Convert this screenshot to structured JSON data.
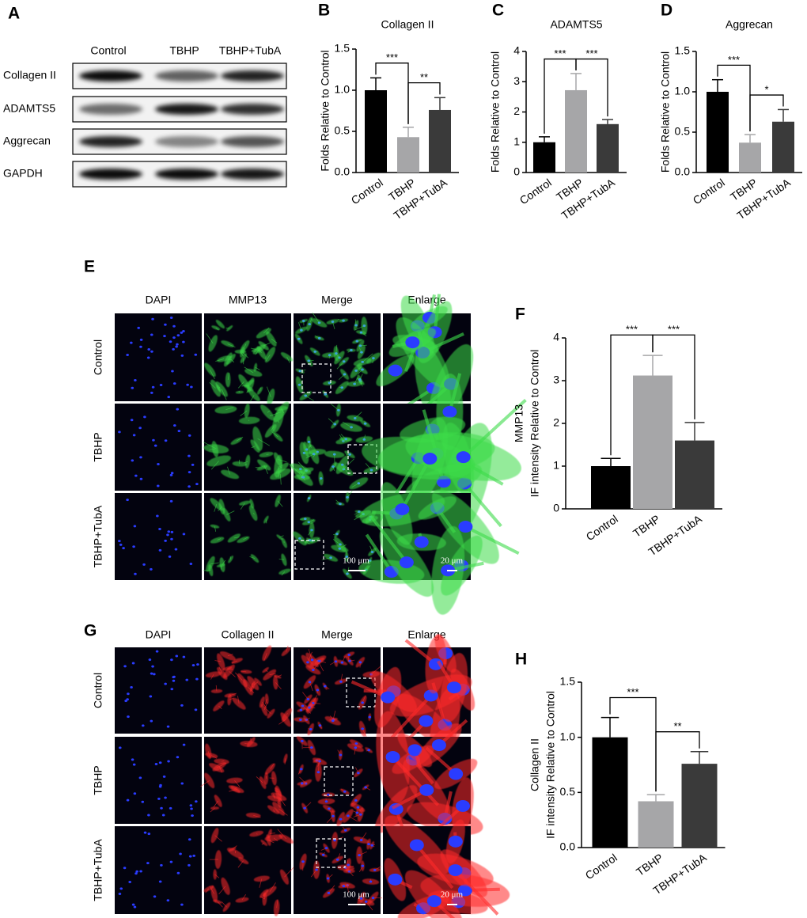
{
  "panel_labels": [
    "A",
    "B",
    "C",
    "D",
    "E",
    "F",
    "G",
    "H"
  ],
  "blot": {
    "columns": [
      "Control",
      "TBHP",
      "TBHP+TubA"
    ],
    "rows": [
      "Collagen II",
      "ADAMTS5",
      "Aggrecan",
      "GAPDH"
    ]
  },
  "if_panels": [
    {
      "channels": [
        "DAPI",
        "MMP13",
        "Merge",
        "Enlarge"
      ],
      "channel_colors": [
        "#2e6fc0",
        "#1aa34a",
        "#000000",
        "#000000"
      ],
      "marker_color": "#3ddc4a",
      "rows": [
        "Control",
        "TBHP",
        "TBHP+TubA"
      ],
      "scale_bars": [
        "100 μm",
        "20 μm"
      ]
    },
    {
      "channels": [
        "DAPI",
        "Collagen II",
        "Merge",
        "Enlarge"
      ],
      "channel_colors": [
        "#2e6fc0",
        "#e02020",
        "#000000",
        "#000000"
      ],
      "marker_color": "#ff2a2a",
      "rows": [
        "Control",
        "TBHP",
        "TBHP+TubA"
      ],
      "scale_bars": [
        "100 μm",
        "20 μm"
      ]
    }
  ],
  "chart_data": [
    {
      "type": "bar",
      "title": "Collagen II",
      "y_label": [
        "Folds Relative to Control"
      ],
      "categories": [
        "Control",
        "TBHP",
        "TBHP+TubA"
      ],
      "values": [
        1.0,
        0.43,
        0.76
      ],
      "errors": [
        0.15,
        0.12,
        0.15
      ],
      "colors": [
        "#000000",
        "#a6a6a8",
        "#3a3a3a"
      ],
      "ylim": [
        0,
        1.5
      ],
      "yticks": [
        {
          "value": 0,
          "label": "0.0"
        },
        {
          "value": 0.5,
          "label": "0.5"
        },
        {
          "value": 1,
          "label": "1.0"
        },
        {
          "value": 1.5,
          "label": "1.5"
        }
      ],
      "annotations": [
        "***",
        "**"
      ]
    },
    {
      "type": "bar",
      "title": "ADAMTS5",
      "y_label": [
        "Folds Relative to Control"
      ],
      "categories": [
        "Control",
        "TBHP",
        "TBHP+TubA"
      ],
      "values": [
        1.0,
        2.72,
        1.6
      ],
      "errors": [
        0.18,
        0.55,
        0.15
      ],
      "colors": [
        "#000000",
        "#a6a6a8",
        "#3a3a3a"
      ],
      "ylim": [
        0,
        4
      ],
      "yticks": [
        0,
        1,
        2,
        3,
        4
      ],
      "annotations": [
        "***",
        "***"
      ]
    },
    {
      "type": "bar",
      "title": "Aggrecan",
      "y_label": [
        "Folds Relative to Control"
      ],
      "categories": [
        "Control",
        "TBHP",
        "TBHP+TubA"
      ],
      "values": [
        1.0,
        0.37,
        0.63
      ],
      "errors": [
        0.15,
        0.1,
        0.15
      ],
      "colors": [
        "#000000",
        "#a6a6a8",
        "#3a3a3a"
      ],
      "ylim": [
        0,
        1.5
      ],
      "yticks": [
        {
          "value": 0,
          "label": "0.0"
        },
        {
          "value": 0.5,
          "label": "0.5"
        },
        {
          "value": 1,
          "label": "1.0"
        },
        {
          "value": 1.5,
          "label": "1.5"
        }
      ],
      "annotations": [
        "***",
        "*"
      ]
    },
    {
      "type": "bar",
      "y_label": [
        "MMP13",
        "IF intensity Relative to Control"
      ],
      "categories": [
        "Control",
        "TBHP",
        "TBHP+TubA"
      ],
      "values": [
        1.0,
        3.12,
        1.6
      ],
      "errors": [
        0.18,
        0.47,
        0.42
      ],
      "colors": [
        "#000000",
        "#a6a6a8",
        "#3a3a3a"
      ],
      "ylim": [
        0,
        4
      ],
      "yticks": [
        0,
        1,
        2,
        3,
        4
      ],
      "annotations": [
        "***",
        "***"
      ]
    },
    {
      "type": "bar",
      "y_label": [
        "Collagen II",
        "IF intensity Relative to Control"
      ],
      "categories": [
        "Control",
        "TBHP",
        "TBHP+TubA"
      ],
      "values": [
        1.0,
        0.42,
        0.76
      ],
      "errors": [
        0.18,
        0.06,
        0.11
      ],
      "colors": [
        "#000000",
        "#a6a6a8",
        "#3a3a3a"
      ],
      "ylim": [
        0,
        1.5
      ],
      "yticks": [
        {
          "value": 0,
          "label": "0.0"
        },
        {
          "value": 0.5,
          "label": "0.5"
        },
        {
          "value": 1,
          "label": "1.0"
        },
        {
          "value": 1.5,
          "label": "1.5"
        }
      ],
      "annotations": [
        "***",
        "**"
      ]
    }
  ]
}
